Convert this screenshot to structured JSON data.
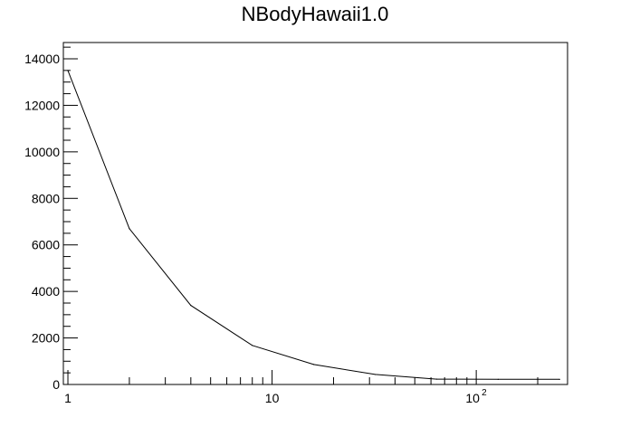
{
  "chart_data": {
    "type": "line",
    "title": "NBodyHawaii1.0",
    "xlabel": "",
    "ylabel": "",
    "xscale": "log",
    "xlim": [
      0.95,
      280
    ],
    "ylim": [
      0,
      14700
    ],
    "grid": false,
    "legend": "none",
    "x_tick_labels": [
      {
        "value": 1,
        "label": "1"
      },
      {
        "value": 10,
        "label": "10"
      },
      {
        "value": 100,
        "label": "10",
        "exponent": "2"
      }
    ],
    "y_tick_labels": [
      {
        "value": 0,
        "label": "0"
      },
      {
        "value": 2000,
        "label": "2000"
      },
      {
        "value": 4000,
        "label": "4000"
      },
      {
        "value": 6000,
        "label": "6000"
      },
      {
        "value": 8000,
        "label": "8000"
      },
      {
        "value": 10000,
        "label": "10000"
      },
      {
        "value": 12000,
        "label": "12000"
      },
      {
        "value": 14000,
        "label": "14000"
      }
    ],
    "series": [
      {
        "color": "#000000",
        "x": [
          1,
          2,
          4,
          8,
          16,
          32,
          64,
          128,
          256
        ],
        "y": [
          13500,
          6700,
          3400,
          1680,
          860,
          430,
          230,
          220,
          220
        ]
      }
    ]
  }
}
